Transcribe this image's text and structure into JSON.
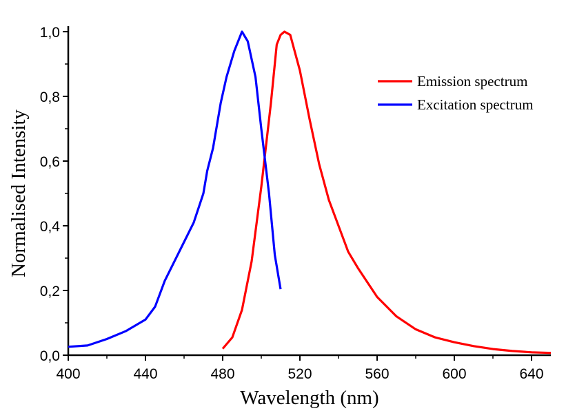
{
  "chart_data": {
    "type": "line",
    "title": "",
    "xlabel": "Wavelength (nm)",
    "ylabel": "Normalised Intensity",
    "xlim": [
      400,
      650
    ],
    "ylim": [
      0,
      1.0
    ],
    "grid": false,
    "legend_position": "top-right",
    "x_ticks": [
      "400",
      "440",
      "480",
      "520",
      "560",
      "600",
      "640"
    ],
    "y_ticks": [
      "0,0",
      "0,2",
      "0,4",
      "0,6",
      "0,8",
      "1,0"
    ],
    "series": [
      {
        "name": "Emission spectrum",
        "color": "#ff0000",
        "x": [
          480,
          485,
          490,
          495,
          500,
          505,
          508,
          510,
          512,
          515,
          520,
          525,
          530,
          535,
          540,
          545,
          550,
          555,
          560,
          570,
          580,
          590,
          600,
          610,
          620,
          630,
          640,
          650
        ],
        "y": [
          0.02,
          0.055,
          0.14,
          0.29,
          0.52,
          0.78,
          0.96,
          0.99,
          1.0,
          0.99,
          0.88,
          0.73,
          0.59,
          0.48,
          0.4,
          0.32,
          0.27,
          0.225,
          0.18,
          0.12,
          0.08,
          0.055,
          0.04,
          0.028,
          0.019,
          0.013,
          0.009,
          0.007
        ]
      },
      {
        "name": "Excitation spectrum",
        "color": "#0000ff",
        "x": [
          400,
          410,
          420,
          430,
          440,
          445,
          450,
          455,
          460,
          465,
          470,
          472,
          475,
          479,
          482,
          486,
          490,
          493,
          497,
          500,
          504,
          507,
          510
        ],
        "y": [
          0.026,
          0.03,
          0.05,
          0.075,
          0.11,
          0.15,
          0.23,
          0.29,
          0.35,
          0.41,
          0.5,
          0.57,
          0.64,
          0.78,
          0.86,
          0.94,
          1.0,
          0.97,
          0.86,
          0.7,
          0.5,
          0.31,
          0.204
        ]
      }
    ]
  }
}
